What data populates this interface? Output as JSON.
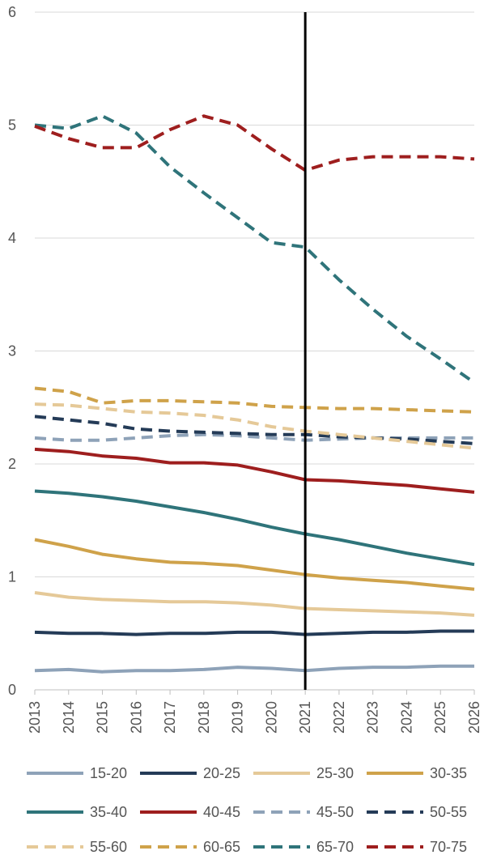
{
  "chart_data": {
    "type": "line",
    "x": [
      "2013",
      "2014",
      "2015",
      "2016",
      "2017",
      "2018",
      "2019",
      "2020",
      "2021",
      "2022",
      "2023",
      "2024",
      "2025",
      "2026"
    ],
    "ylim": [
      0,
      6
    ],
    "yticks": [
      "0",
      "1",
      "2",
      "3",
      "4",
      "5",
      "6"
    ],
    "grid": "horizontal",
    "legend_position": "bottom",
    "reference_line_x": "2021",
    "series": [
      {
        "name": "15-20",
        "color": "#8EA2B8",
        "style": "solid",
        "values": [
          0.17,
          0.18,
          0.16,
          0.17,
          0.17,
          0.18,
          0.2,
          0.19,
          0.17,
          0.19,
          0.2,
          0.2,
          0.21,
          0.21
        ]
      },
      {
        "name": "20-25",
        "color": "#243B57",
        "style": "solid",
        "values": [
          0.51,
          0.5,
          0.5,
          0.49,
          0.5,
          0.5,
          0.51,
          0.51,
          0.49,
          0.5,
          0.51,
          0.51,
          0.52,
          0.52
        ]
      },
      {
        "name": "25-30",
        "color": "#E5C998",
        "style": "solid",
        "values": [
          0.86,
          0.82,
          0.8,
          0.79,
          0.78,
          0.78,
          0.77,
          0.75,
          0.72,
          0.71,
          0.7,
          0.69,
          0.68,
          0.66
        ]
      },
      {
        "name": "30-35",
        "color": "#CFA24A",
        "style": "solid",
        "values": [
          1.33,
          1.27,
          1.2,
          1.16,
          1.13,
          1.12,
          1.1,
          1.06,
          1.02,
          0.99,
          0.97,
          0.95,
          0.92,
          0.89
        ]
      },
      {
        "name": "35-40",
        "color": "#2F747A",
        "style": "solid",
        "values": [
          1.76,
          1.74,
          1.71,
          1.67,
          1.62,
          1.57,
          1.51,
          1.44,
          1.38,
          1.33,
          1.27,
          1.21,
          1.16,
          1.11
        ]
      },
      {
        "name": "40-45",
        "color": "#9E1E1E",
        "style": "solid",
        "values": [
          2.13,
          2.11,
          2.07,
          2.05,
          2.01,
          2.01,
          1.99,
          1.93,
          1.86,
          1.85,
          1.83,
          1.81,
          1.78,
          1.75
        ]
      },
      {
        "name": "45-50",
        "color": "#8EA2B8",
        "style": "dashed",
        "values": [
          2.23,
          2.21,
          2.21,
          2.23,
          2.25,
          2.26,
          2.25,
          2.23,
          2.21,
          2.22,
          2.23,
          2.23,
          2.23,
          2.23
        ]
      },
      {
        "name": "50-55",
        "color": "#243B57",
        "style": "dashed",
        "values": [
          2.42,
          2.39,
          2.36,
          2.31,
          2.29,
          2.28,
          2.27,
          2.26,
          2.26,
          2.24,
          2.23,
          2.22,
          2.2,
          2.18
        ]
      },
      {
        "name": "55-60",
        "color": "#E5C998",
        "style": "dashed",
        "values": [
          2.53,
          2.52,
          2.49,
          2.46,
          2.45,
          2.43,
          2.39,
          2.33,
          2.29,
          2.26,
          2.23,
          2.2,
          2.17,
          2.14
        ]
      },
      {
        "name": "60-65",
        "color": "#CFA24A",
        "style": "dashed",
        "values": [
          2.67,
          2.64,
          2.54,
          2.56,
          2.56,
          2.55,
          2.54,
          2.51,
          2.5,
          2.49,
          2.49,
          2.48,
          2.47,
          2.46
        ]
      },
      {
        "name": "65-70",
        "color": "#2F747A",
        "style": "dashed",
        "values": [
          5.0,
          4.97,
          5.08,
          4.93,
          4.63,
          4.4,
          4.18,
          3.96,
          3.92,
          3.63,
          3.37,
          3.13,
          2.93,
          2.72
        ]
      },
      {
        "name": "70-75",
        "color": "#9E1E1E",
        "style": "dashed",
        "values": [
          4.99,
          4.88,
          4.8,
          4.8,
          4.96,
          5.08,
          5.0,
          4.79,
          4.6,
          4.69,
          4.72,
          4.72,
          4.72,
          4.7
        ]
      }
    ]
  }
}
